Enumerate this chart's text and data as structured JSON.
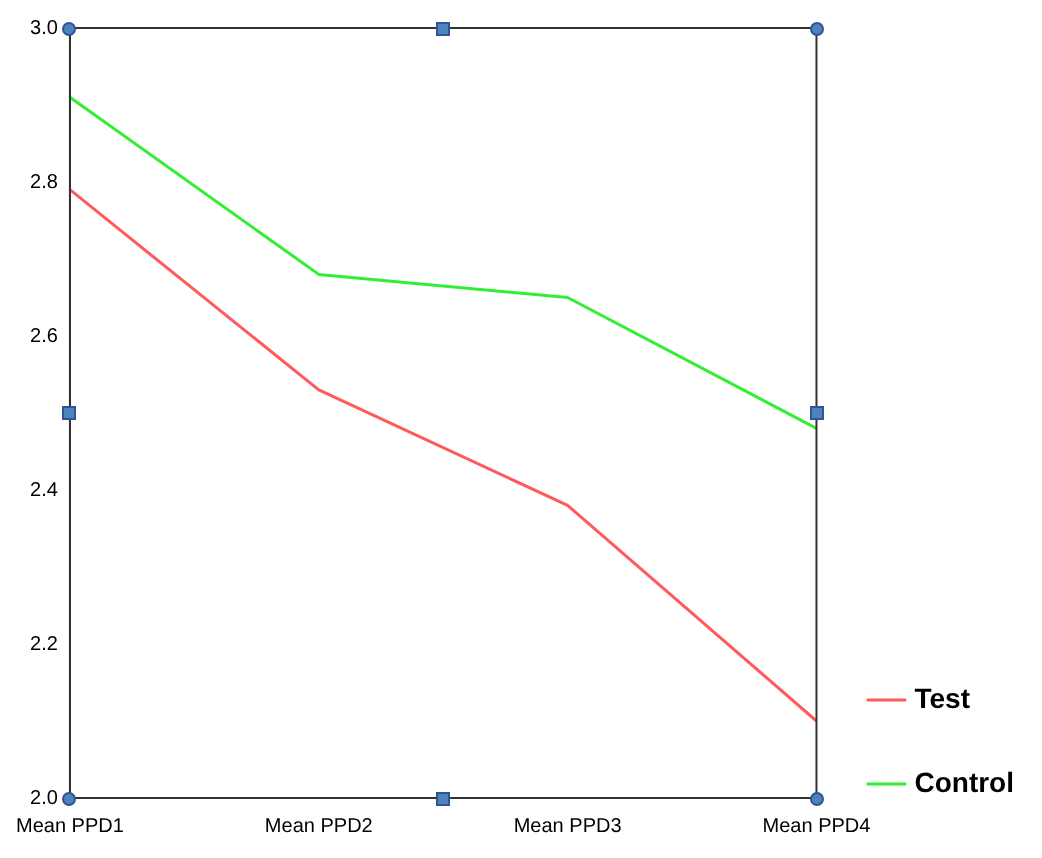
{
  "chart_data": {
    "type": "line",
    "categories": [
      "Mean PPD1",
      "Mean PPD2",
      "Mean PPD3",
      "Mean PPD4"
    ],
    "series": [
      {
        "name": "Test",
        "color": "#ff5a5a",
        "values": [
          2.79,
          2.53,
          2.38,
          2.1
        ]
      },
      {
        "name": "Control",
        "color": "#33ee33",
        "values": [
          2.91,
          2.68,
          2.65,
          2.48
        ]
      }
    ],
    "ylim": [
      2.0,
      3.0
    ],
    "yticks": [
      {
        "value": 2.0,
        "label": "2.0"
      },
      {
        "value": 2.2,
        "label": "2.2"
      },
      {
        "value": 2.4,
        "label": "2.4"
      },
      {
        "value": 2.6,
        "label": "2.6"
      },
      {
        "value": 2.8,
        "label": "2.8"
      },
      {
        "value": 3.0,
        "label": "3.0"
      }
    ],
    "grid": false,
    "legend": "right",
    "marker": "none",
    "line_style": "solid"
  }
}
